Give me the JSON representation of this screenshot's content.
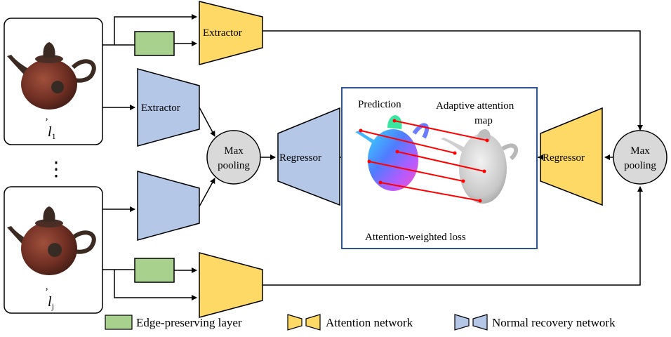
{
  "inputs": [
    {
      "label_base": "l",
      "label_sub": "1",
      "label_prime": "’"
    },
    {
      "label_base": "l",
      "label_sub": "j",
      "label_prime": "’"
    }
  ],
  "ellipsis": "⋮",
  "blocks": {
    "extractor_attention": "Extractor",
    "extractor_normal": "Extractor",
    "max_pooling_left": [
      "Max",
      "pooling"
    ],
    "max_pooling_right": [
      "Max",
      "pooling"
    ],
    "regressor_normal": "Regressor",
    "regressor_attention": "Regressor"
  },
  "center_panel": {
    "prediction_label": "Prediction",
    "attention_map_label": [
      "Adaptive attention",
      "map"
    ],
    "loss_label": "Attention-weighted loss"
  },
  "legend": [
    {
      "label": "Edge-preserving layer",
      "icon": "green-rectangle"
    },
    {
      "label": "Attention network",
      "icon": "yellow-bowtie"
    },
    {
      "label": "Normal recovery network",
      "icon": "blue-bowtie"
    }
  ],
  "colors": {
    "attention": "#FFD966",
    "normal": "#B4C7E7",
    "edge": "#A9D18E",
    "pool": "#D9D9D9",
    "panel_border": "#2F5597",
    "lines": "#FF0000"
  }
}
